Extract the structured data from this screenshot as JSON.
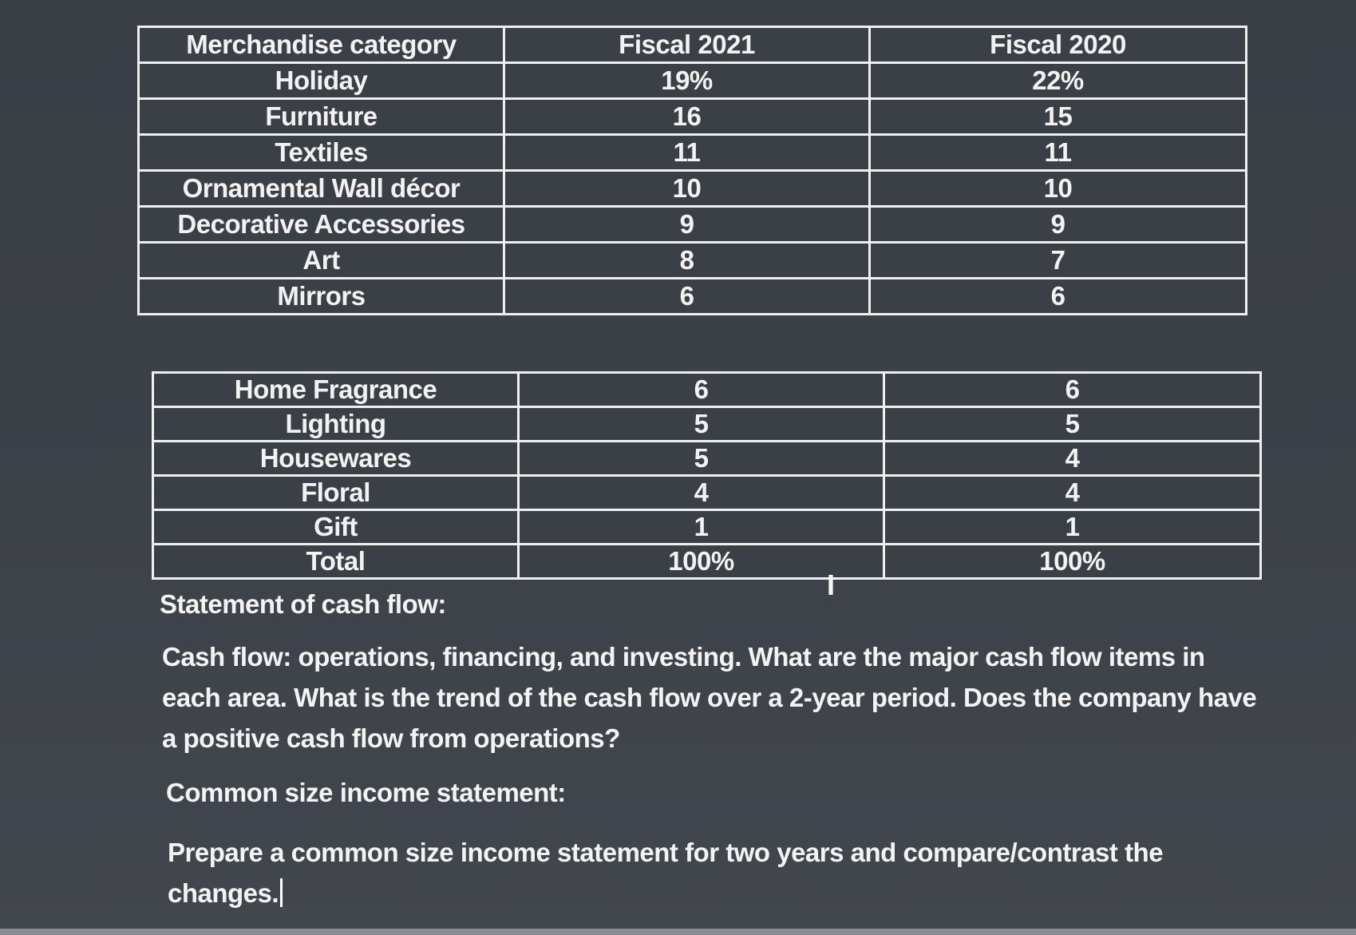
{
  "table_top": {
    "headers": [
      "Merchandise category",
      "Fiscal 2021",
      "Fiscal 2020"
    ],
    "rows": [
      [
        "Holiday",
        "19%",
        "22%"
      ],
      [
        "Furniture",
        "16",
        "15"
      ],
      [
        "Textiles",
        "11",
        "11"
      ],
      [
        "Ornamental Wall décor",
        "10",
        "10"
      ],
      [
        "Decorative Accessories",
        "9",
        "9"
      ],
      [
        "Art",
        "8",
        "7"
      ],
      [
        "Mirrors",
        "6",
        "6"
      ]
    ]
  },
  "table_bottom": {
    "rows": [
      [
        "Home Fragrance",
        "6",
        "6"
      ],
      [
        "Lighting",
        "5",
        "5"
      ],
      [
        "Housewares",
        "5",
        "4"
      ],
      [
        "Floral",
        "4",
        "4"
      ],
      [
        "Gift",
        "1",
        "1"
      ],
      [
        "Total",
        "100%",
        "100%"
      ]
    ]
  },
  "sections": {
    "cash_heading": "Statement of cash flow:",
    "cash_text": "Cash flow: operations, financing, and investing. What are the major cash flow items in each area. What is the trend of the cash flow over a 2-year period. Does the company have a positive cash flow from operations?",
    "common_heading": "Common size income statement:",
    "common_text": "Prepare a common size income statement for two years and compare/contrast the changes."
  },
  "cursor_glyph": "I"
}
